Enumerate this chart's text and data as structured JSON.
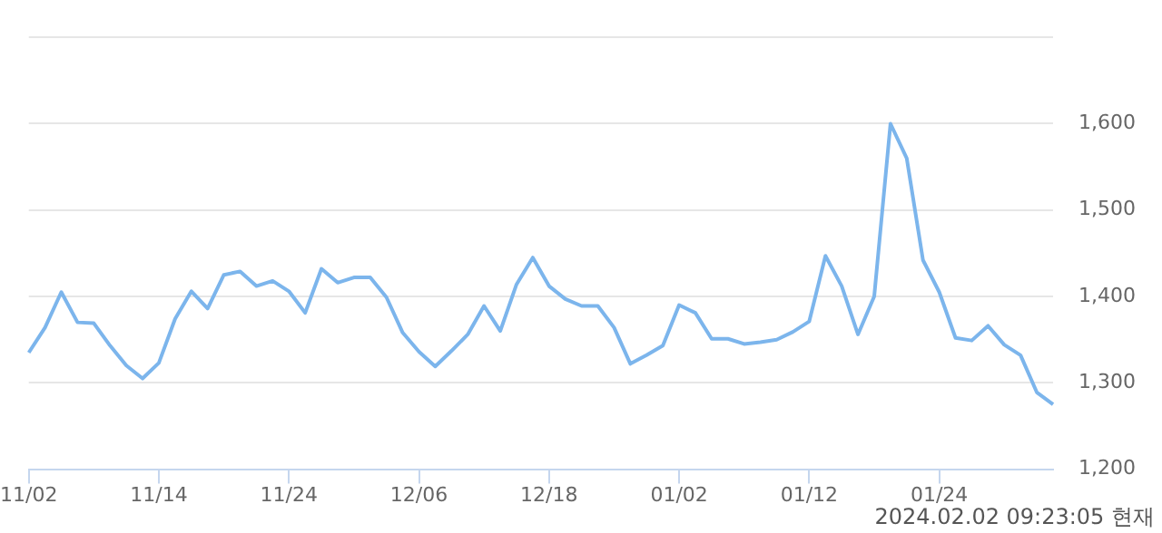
{
  "chart_data": {
    "type": "line",
    "categories": [
      "11/02",
      null,
      null,
      null,
      null,
      null,
      null,
      null,
      "11/14",
      null,
      null,
      null,
      null,
      null,
      null,
      null,
      "11/24",
      null,
      null,
      null,
      null,
      null,
      null,
      null,
      "12/06",
      null,
      null,
      null,
      null,
      null,
      null,
      null,
      "12/18",
      null,
      null,
      null,
      null,
      null,
      null,
      null,
      "01/02",
      null,
      null,
      null,
      null,
      null,
      null,
      null,
      "01/12",
      null,
      null,
      null,
      null,
      null,
      null,
      null,
      "01/24",
      null,
      null,
      null,
      null,
      null,
      null,
      null
    ],
    "series": [
      {
        "color": "#7cb5ec",
        "values": [
          1335,
          1364,
          1405,
          1370,
          1369,
          1343,
          1320,
          1305,
          1323,
          1374,
          1406,
          1386,
          1425,
          1429,
          1412,
          1418,
          1406,
          1381,
          1432,
          1416,
          1422,
          1422,
          1399,
          1358,
          1336,
          1319,
          1337,
          1356,
          1389,
          1360,
          1414,
          1445,
          1412,
          1397,
          1389,
          1389,
          1364,
          1322,
          1332,
          1343,
          1390,
          1381,
          1351,
          1351,
          1345,
          1347,
          1350,
          1359,
          1371,
          1447,
          1412,
          1356,
          1400,
          1600,
          1560,
          1442,
          1405,
          1352,
          1349,
          1366,
          1344,
          1332,
          1289,
          1275
        ]
      }
    ],
    "ylim": [
      1200,
      1700
    ],
    "yticks": [
      {
        "value": 1200,
        "label": "1,200"
      },
      {
        "value": 1300,
        "label": "1,300"
      },
      {
        "value": 1400,
        "label": "1,400"
      },
      {
        "value": 1500,
        "label": "1,500"
      },
      {
        "value": 1600,
        "label": "1,600"
      },
      {
        "value": 1700,
        "label": null
      }
    ],
    "grid": "y",
    "legend": false,
    "marker": "none",
    "line_style": "solid",
    "annotations": [
      "2024.02.02 09:23:05 현재"
    ]
  }
}
